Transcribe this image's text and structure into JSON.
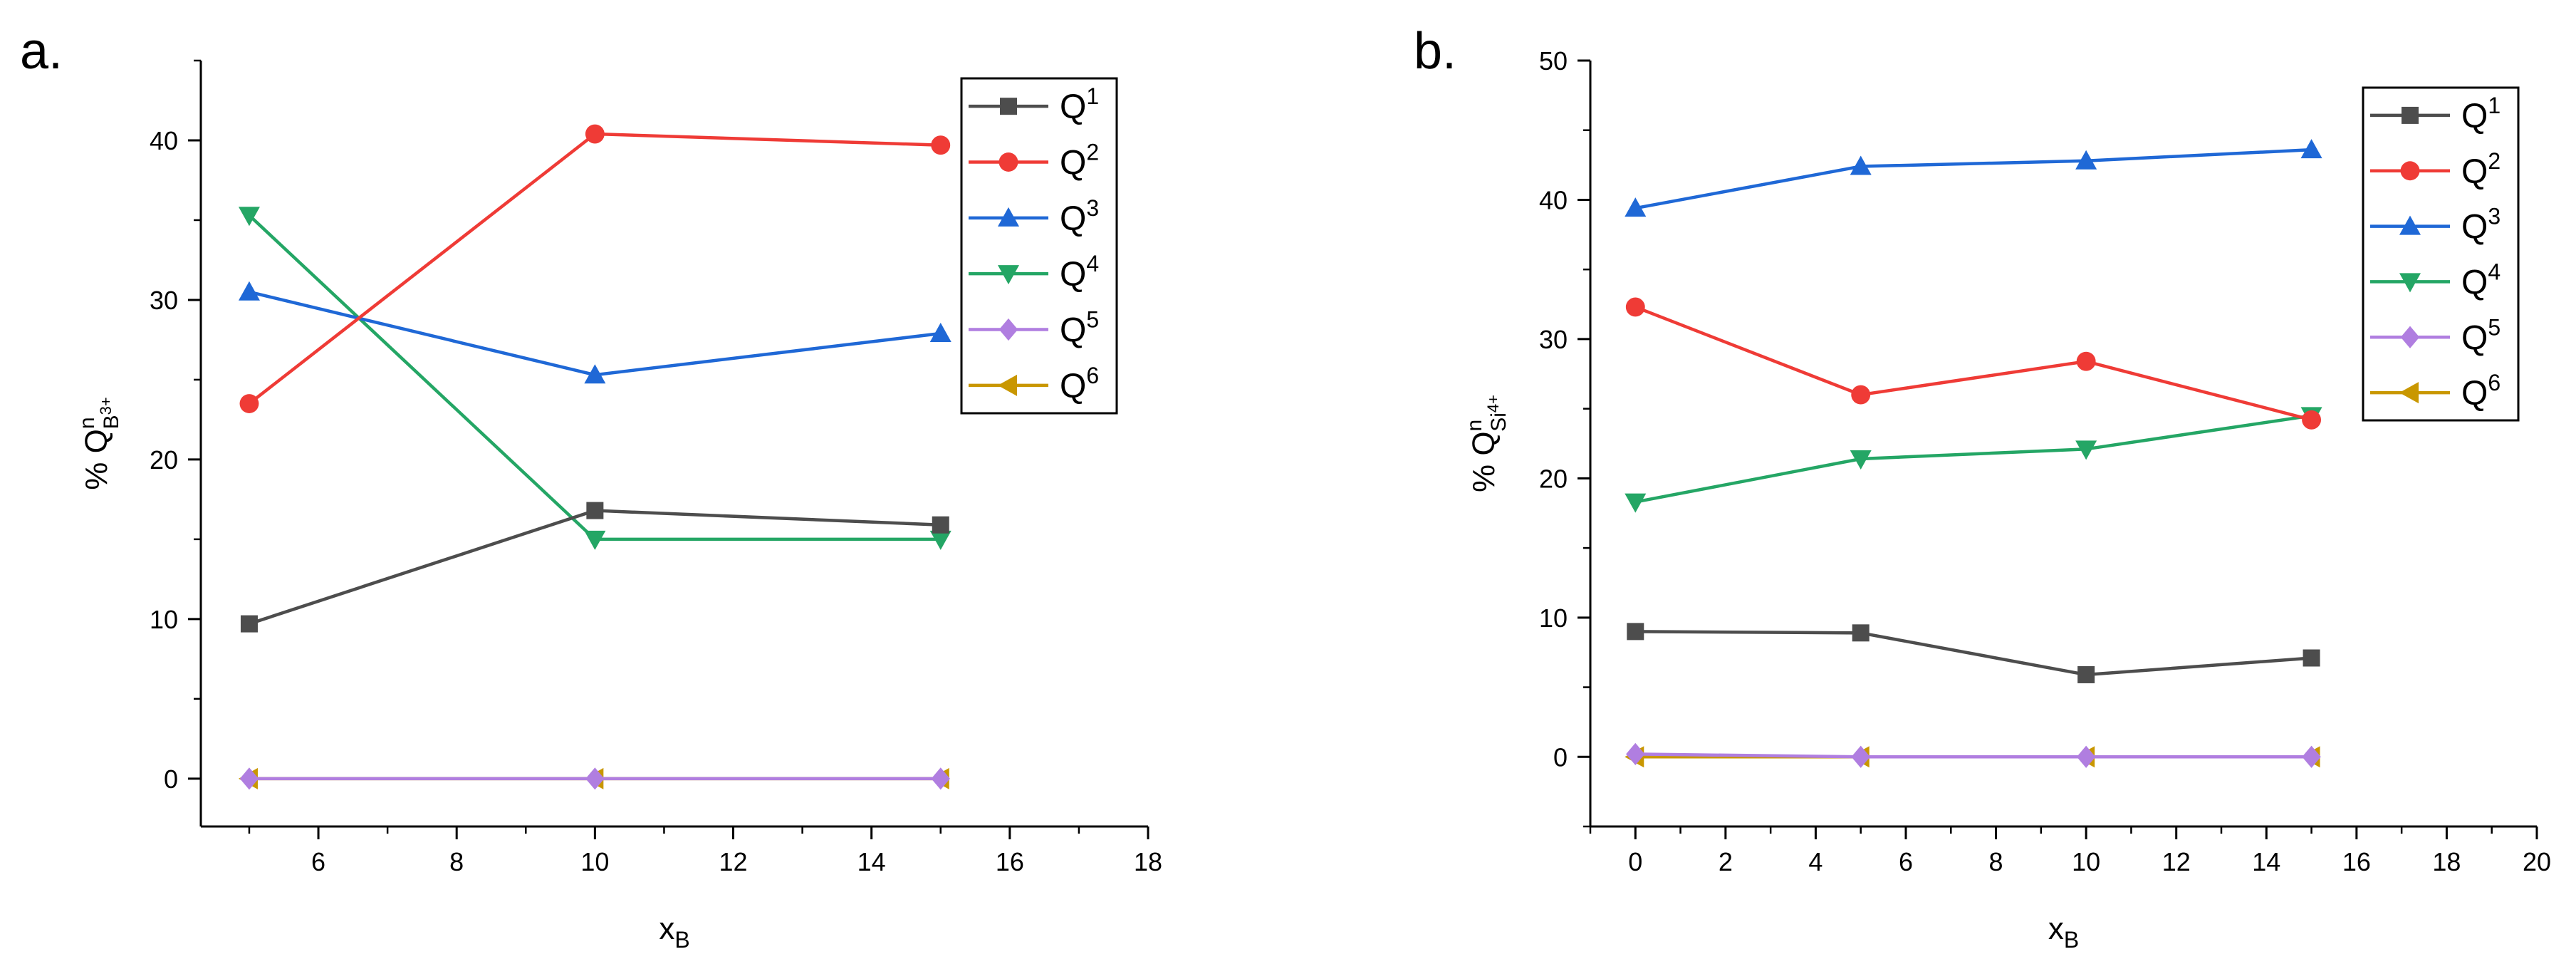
{
  "colors": {
    "Q1": "#4d4d4d",
    "Q2": "#ef3b36",
    "Q3": "#1f68d6",
    "Q4": "#24a665",
    "Q5": "#b07ee0",
    "Q6": "#c99700"
  },
  "chart_data": [
    {
      "type": "line",
      "panel_label": "a.",
      "title": "",
      "xlabel": {
        "main": "x",
        "sub": "B"
      },
      "ylabel": {
        "prefix": "% Q",
        "sup": "n",
        "sub_base": "B",
        "sub_sup": "3+"
      },
      "xlim": [
        4.3,
        18
      ],
      "ylim": [
        -3,
        45
      ],
      "xticks": [
        6,
        8,
        10,
        12,
        14,
        16,
        18
      ],
      "yticks": [
        0,
        10,
        20,
        30,
        40
      ],
      "legend_position": "top-right",
      "x": [
        5,
        10,
        15
      ],
      "series": [
        {
          "name": "Q1",
          "base": "Q",
          "sup": "1",
          "marker": "square",
          "values": [
            9.7,
            16.8,
            15.9
          ]
        },
        {
          "name": "Q2",
          "base": "Q",
          "sup": "2",
          "marker": "circle",
          "values": [
            23.5,
            40.4,
            39.7
          ]
        },
        {
          "name": "Q3",
          "base": "Q",
          "sup": "3",
          "marker": "triangle-up",
          "values": [
            30.5,
            25.3,
            27.9
          ]
        },
        {
          "name": "Q4",
          "base": "Q",
          "sup": "4",
          "marker": "triangle-down",
          "values": [
            35.3,
            15.0,
            15.0
          ]
        },
        {
          "name": "Q5",
          "base": "Q",
          "sup": "5",
          "marker": "diamond",
          "values": [
            0,
            0,
            0
          ]
        },
        {
          "name": "Q6",
          "base": "Q",
          "sup": "6",
          "marker": "triangle-left",
          "values": [
            0,
            0,
            0
          ]
        }
      ]
    },
    {
      "type": "line",
      "panel_label": "b.",
      "title": "",
      "xlabel": {
        "main": "x",
        "sub": "B"
      },
      "ylabel": {
        "prefix": "% Q",
        "sup": "n",
        "sub_base": "Si",
        "sub_sup": "4+"
      },
      "xlim": [
        -1,
        20
      ],
      "ylim": [
        -5,
        50
      ],
      "xticks": [
        0,
        2,
        4,
        6,
        8,
        10,
        12,
        14,
        16,
        18,
        20
      ],
      "yticks": [
        0,
        10,
        20,
        30,
        40,
        50
      ],
      "legend_position": "top-right",
      "x": [
        0,
        5,
        10,
        15
      ],
      "series": [
        {
          "name": "Q1",
          "base": "Q",
          "sup": "1",
          "marker": "square",
          "values": [
            9.0,
            8.9,
            5.9,
            7.1
          ]
        },
        {
          "name": "Q2",
          "base": "Q",
          "sup": "2",
          "marker": "circle",
          "values": [
            32.3,
            26.0,
            28.4,
            24.2
          ]
        },
        {
          "name": "Q3",
          "base": "Q",
          "sup": "3",
          "marker": "triangle-up",
          "values": [
            39.4,
            42.4,
            42.8,
            43.6
          ]
        },
        {
          "name": "Q4",
          "base": "Q",
          "sup": "4",
          "marker": "triangle-down",
          "values": [
            18.3,
            21.4,
            22.1,
            24.5
          ]
        },
        {
          "name": "Q5",
          "base": "Q",
          "sup": "5",
          "marker": "diamond",
          "values": [
            0.2,
            0,
            0,
            0
          ]
        },
        {
          "name": "Q6",
          "base": "Q",
          "sup": "6",
          "marker": "triangle-left",
          "values": [
            0,
            0,
            0,
            0
          ]
        }
      ]
    }
  ]
}
